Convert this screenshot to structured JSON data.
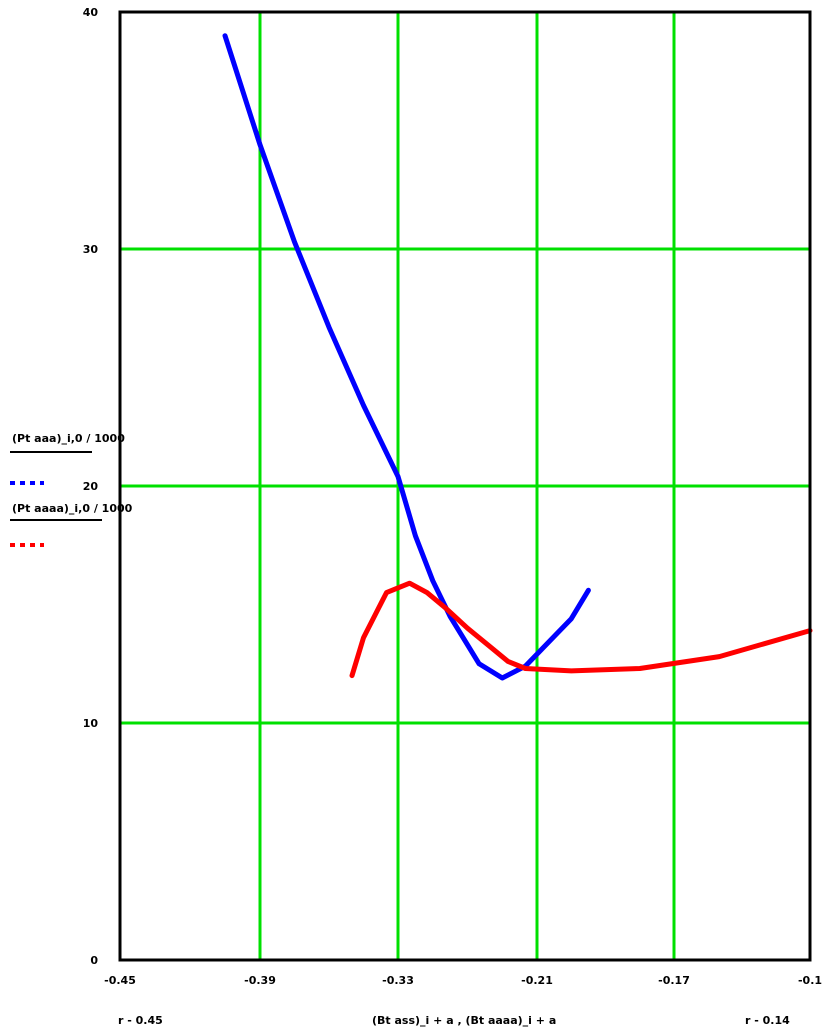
{
  "chart_data": {
    "type": "line",
    "grid": true,
    "grid_color": "#00e000",
    "xlim": [
      -0.45,
      -0.14
    ],
    "ylim": [
      0,
      40
    ],
    "x_ticks": [
      -0.45,
      -0.39,
      -0.33,
      -0.21,
      -0.17,
      -0.14
    ],
    "x_tick_labels": [
      "-0.45",
      "-0.39",
      "-0.33",
      "-0.21",
      "-0.17",
      "-0.1"
    ],
    "y_ticks": [
      0,
      10,
      20,
      30,
      40
    ],
    "y_tick_labels": [
      "0",
      "10",
      "20",
      "30",
      "40"
    ],
    "x_axis_left_label": "r - 0.45",
    "x_axis_right_label": "r - 0.14",
    "xlabel": "(Bt ass)_i + a , (Bt aaaa)_i + a",
    "ylabel_series1": "(Pt aaa)_i,0 / 1000",
    "ylabel_series2": "(Pt aaaa)_i,0 / 1000",
    "series": [
      {
        "color": "#0000ff",
        "style": "solid",
        "x": [
          -0.405,
          -0.39,
          -0.375,
          -0.36,
          -0.345,
          -0.33,
          -0.315,
          -0.3,
          -0.285,
          -0.27,
          -0.26,
          -0.25,
          -0.24,
          -0.22,
          -0.2,
          -0.195
        ],
        "y": [
          39.0,
          34.4,
          30.3,
          26.7,
          23.4,
          20.4,
          17.9,
          16.0,
          14.5,
          13.3,
          12.5,
          12.2,
          11.9,
          12.4,
          14.4,
          15.6
        ]
      },
      {
        "color": "#ff0000",
        "style": "solid",
        "x": [
          -0.35,
          -0.345,
          -0.335,
          -0.32,
          -0.305,
          -0.29,
          -0.27,
          -0.25,
          -0.235,
          -0.22,
          -0.2,
          -0.18,
          -0.16,
          -0.14
        ],
        "y": [
          12.0,
          13.6,
          15.5,
          15.9,
          15.5,
          14.9,
          14.0,
          13.2,
          12.6,
          12.3,
          12.2,
          12.3,
          12.8,
          13.9
        ]
      }
    ]
  }
}
